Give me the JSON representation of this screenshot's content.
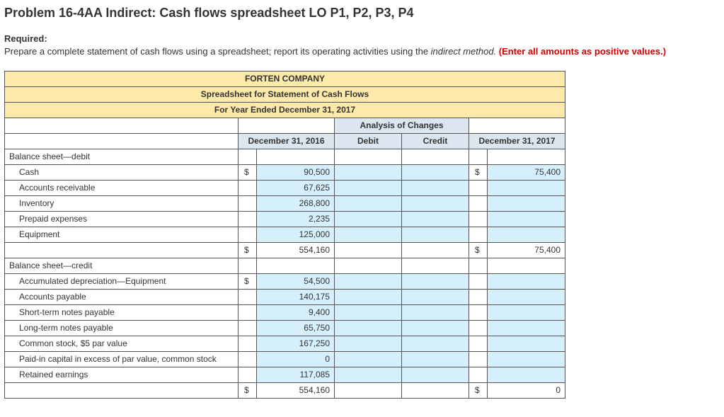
{
  "title": "Problem 16-4AA Indirect: Cash flows spreadsheet LO P1, P2, P3, P4",
  "required_label": "Required:",
  "required_text_a": "Prepare a complete statement of cash flows using a spreadsheet; report its operating activities using the ",
  "required_text_italic": "indirect method.",
  "required_text_red": " (Enter all amounts as positive values.)",
  "headers": {
    "company": "FORTEN COMPANY",
    "subtitle": "Spreadsheet for Statement of Cash Flows",
    "period": "For Year Ended December 31, 2017",
    "analysis": "Analysis of Changes",
    "col_2016": "December 31, 2016",
    "col_debit": "Debit",
    "col_credit": "Credit",
    "col_2017": "December 31, 2017"
  },
  "sections": {
    "debit_header": "Balance sheet—debit",
    "credit_header": "Balance sheet—credit"
  },
  "rows_debit": [
    {
      "label": "Cash",
      "sym": "$",
      "val": "90,500",
      "sym2": "$",
      "val2": "75,400"
    },
    {
      "label": "Accounts receivable",
      "sym": "",
      "val": "67,625",
      "sym2": "",
      "val2": ""
    },
    {
      "label": "Inventory",
      "sym": "",
      "val": "268,800",
      "sym2": "",
      "val2": ""
    },
    {
      "label": "Prepaid expenses",
      "sym": "",
      "val": "2,235",
      "sym2": "",
      "val2": ""
    },
    {
      "label": "Equipment",
      "sym": "",
      "val": "125,000",
      "sym2": "",
      "val2": ""
    }
  ],
  "debit_total": {
    "sym": "$",
    "val": "554,160",
    "sym2": "$",
    "val2": "75,400"
  },
  "rows_credit": [
    {
      "label": "Accumulated depreciation—Equipment",
      "sym": "$",
      "val": "54,500"
    },
    {
      "label": "Accounts payable",
      "sym": "",
      "val": "140,175"
    },
    {
      "label": "Short-term notes payable",
      "sym": "",
      "val": "9,400"
    },
    {
      "label": "Long-term notes payable",
      "sym": "",
      "val": "65,750"
    },
    {
      "label": "Common stock, $5 par value",
      "sym": "",
      "val": "167,250"
    },
    {
      "label": "Paid-in capital in excess of par value, common stock",
      "sym": "",
      "val": "0"
    },
    {
      "label": "Retained earnings",
      "sym": "",
      "val": "117,085"
    }
  ],
  "credit_total": {
    "sym": "$",
    "val": "554,160",
    "sym2": "$",
    "val2": "0"
  },
  "colors": {
    "header_bg": "#fde9a9",
    "colhead_bg": "#dce6f1",
    "input_bg": "#d6effc",
    "red": "#d40000"
  }
}
